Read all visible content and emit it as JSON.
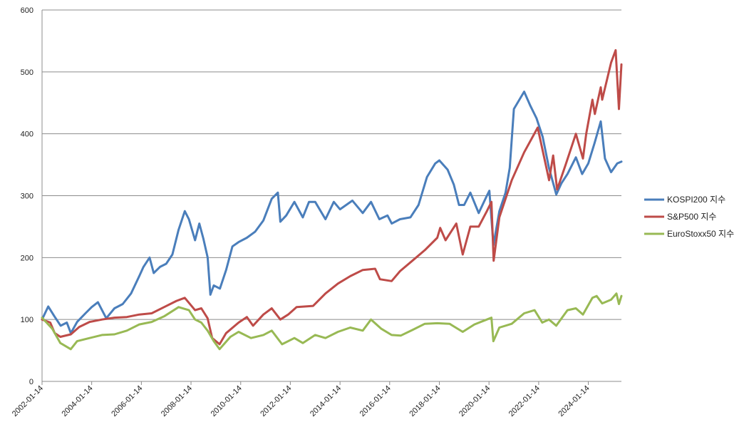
{
  "chart_data": {
    "type": "line",
    "title": "",
    "xlabel": "",
    "ylabel": "",
    "ylim": [
      0,
      600
    ],
    "xlim": [
      "2002-01-14",
      "2025-05-15"
    ],
    "y_ticks": [
      0,
      100,
      200,
      300,
      400,
      500,
      600
    ],
    "x_tick_labels": [
      "2002-01-14",
      "2004-01-14",
      "2006-01-14",
      "2008-01-14",
      "2010-01-14",
      "2012-01-14",
      "2014-01-14",
      "2016-01-14",
      "2018-01-14",
      "2020-01-14",
      "2022-01-14",
      "2024-01-14"
    ],
    "grid": "horizontal",
    "legend": "right",
    "series": [
      {
        "name": "KOSPI200 지수",
        "color": "#4a7ebb",
        "points": [
          [
            "2002-01-14",
            100
          ],
          [
            "2002-04-15",
            121
          ],
          [
            "2002-07-15",
            105
          ],
          [
            "2002-10-15",
            90
          ],
          [
            "2003-01-14",
            95
          ],
          [
            "2003-03-14",
            78
          ],
          [
            "2003-06-14",
            96
          ],
          [
            "2003-10-14",
            110
          ],
          [
            "2004-01-14",
            120
          ],
          [
            "2004-04-15",
            128
          ],
          [
            "2004-08-15",
            102
          ],
          [
            "2004-12-14",
            118
          ],
          [
            "2005-04-15",
            125
          ],
          [
            "2005-08-15",
            142
          ],
          [
            "2005-12-14",
            170
          ],
          [
            "2006-02-14",
            185
          ],
          [
            "2006-05-15",
            200
          ],
          [
            "2006-07-15",
            175
          ],
          [
            "2006-10-15",
            185
          ],
          [
            "2007-01-14",
            190
          ],
          [
            "2007-04-15",
            205
          ],
          [
            "2007-07-15",
            245
          ],
          [
            "2007-10-15",
            275
          ],
          [
            "2007-12-14",
            262
          ],
          [
            "2008-03-14",
            228
          ],
          [
            "2008-05-15",
            255
          ],
          [
            "2008-07-15",
            230
          ],
          [
            "2008-09-15",
            200
          ],
          [
            "2008-10-25",
            140
          ],
          [
            "2008-12-14",
            155
          ],
          [
            "2009-03-14",
            150
          ],
          [
            "2009-06-14",
            180
          ],
          [
            "2009-09-14",
            218
          ],
          [
            "2009-12-14",
            225
          ],
          [
            "2010-04-15",
            232
          ],
          [
            "2010-08-15",
            242
          ],
          [
            "2010-12-14",
            260
          ],
          [
            "2011-04-15",
            295
          ],
          [
            "2011-07-15",
            305
          ],
          [
            "2011-08-20",
            258
          ],
          [
            "2011-11-14",
            268
          ],
          [
            "2012-03-14",
            290
          ],
          [
            "2012-07-15",
            265
          ],
          [
            "2012-10-15",
            290
          ],
          [
            "2013-01-14",
            290
          ],
          [
            "2013-06-14",
            262
          ],
          [
            "2013-10-14",
            290
          ],
          [
            "2014-01-14",
            278
          ],
          [
            "2014-07-15",
            292
          ],
          [
            "2014-12-14",
            272
          ],
          [
            "2015-04-15",
            290
          ],
          [
            "2015-08-15",
            262
          ],
          [
            "2015-12-14",
            268
          ],
          [
            "2016-02-14",
            255
          ],
          [
            "2016-06-14",
            262
          ],
          [
            "2016-11-14",
            265
          ],
          [
            "2017-03-14",
            285
          ],
          [
            "2017-07-15",
            330
          ],
          [
            "2017-11-14",
            352
          ],
          [
            "2018-01-14",
            357
          ],
          [
            "2018-05-15",
            342
          ],
          [
            "2018-08-15",
            318
          ],
          [
            "2018-10-30",
            285
          ],
          [
            "2019-01-14",
            285
          ],
          [
            "2019-04-15",
            305
          ],
          [
            "2019-08-15",
            272
          ],
          [
            "2019-12-14",
            300
          ],
          [
            "2020-01-20",
            308
          ],
          [
            "2020-03-19",
            220
          ],
          [
            "2020-06-14",
            275
          ],
          [
            "2020-09-14",
            305
          ],
          [
            "2020-11-14",
            345
          ],
          [
            "2021-01-14",
            440
          ],
          [
            "2021-06-14",
            468
          ],
          [
            "2021-09-14",
            445
          ],
          [
            "2021-12-14",
            425
          ],
          [
            "2022-03-14",
            395
          ],
          [
            "2022-06-14",
            345
          ],
          [
            "2022-09-30",
            302
          ],
          [
            "2022-12-14",
            320
          ],
          [
            "2023-03-14",
            335
          ],
          [
            "2023-07-15",
            362
          ],
          [
            "2023-10-15",
            335
          ],
          [
            "2024-01-14",
            352
          ],
          [
            "2024-04-15",
            385
          ],
          [
            "2024-07-15",
            420
          ],
          [
            "2024-09-15",
            360
          ],
          [
            "2024-12-14",
            338
          ],
          [
            "2025-03-14",
            352
          ],
          [
            "2025-05-15",
            355
          ]
        ]
      },
      {
        "name": "S&P500 지수",
        "color": "#be4b48",
        "points": [
          [
            "2002-01-14",
            100
          ],
          [
            "2002-05-15",
            95
          ],
          [
            "2002-07-20",
            78
          ],
          [
            "2002-10-10",
            72
          ],
          [
            "2003-03-14",
            76
          ],
          [
            "2003-07-15",
            88
          ],
          [
            "2003-12-14",
            96
          ],
          [
            "2004-06-14",
            100
          ],
          [
            "2004-12-14",
            103
          ],
          [
            "2005-06-14",
            104
          ],
          [
            "2005-12-14",
            108
          ],
          [
            "2006-06-14",
            110
          ],
          [
            "2006-12-14",
            120
          ],
          [
            "2007-06-14",
            130
          ],
          [
            "2007-10-15",
            135
          ],
          [
            "2008-03-14",
            115
          ],
          [
            "2008-06-14",
            118
          ],
          [
            "2008-09-14",
            102
          ],
          [
            "2008-11-20",
            70
          ],
          [
            "2009-03-09",
            60
          ],
          [
            "2009-06-14",
            78
          ],
          [
            "2009-12-14",
            95
          ],
          [
            "2010-04-15",
            104
          ],
          [
            "2010-07-15",
            90
          ],
          [
            "2010-12-14",
            108
          ],
          [
            "2011-04-15",
            118
          ],
          [
            "2011-08-20",
            100
          ],
          [
            "2011-12-14",
            108
          ],
          [
            "2012-04-15",
            120
          ],
          [
            "2012-12-14",
            122
          ],
          [
            "2013-06-14",
            142
          ],
          [
            "2013-12-14",
            158
          ],
          [
            "2014-06-14",
            170
          ],
          [
            "2014-12-14",
            180
          ],
          [
            "2015-06-14",
            182
          ],
          [
            "2015-08-25",
            165
          ],
          [
            "2016-02-11",
            162
          ],
          [
            "2016-06-14",
            178
          ],
          [
            "2016-12-14",
            195
          ],
          [
            "2017-06-14",
            212
          ],
          [
            "2017-12-14",
            232
          ],
          [
            "2018-01-26",
            248
          ],
          [
            "2018-04-15",
            228
          ],
          [
            "2018-09-20",
            255
          ],
          [
            "2018-12-24",
            205
          ],
          [
            "2019-04-15",
            250
          ],
          [
            "2019-08-15",
            250
          ],
          [
            "2019-12-14",
            275
          ],
          [
            "2020-02-19",
            290
          ],
          [
            "2020-03-23",
            195
          ],
          [
            "2020-06-14",
            265
          ],
          [
            "2020-12-14",
            325
          ],
          [
            "2021-06-14",
            370
          ],
          [
            "2021-12-30",
            410
          ],
          [
            "2022-06-16",
            325
          ],
          [
            "2022-08-15",
            365
          ],
          [
            "2022-10-12",
            310
          ],
          [
            "2023-02-14",
            350
          ],
          [
            "2023-07-15",
            400
          ],
          [
            "2023-10-27",
            360
          ],
          [
            "2023-12-14",
            400
          ],
          [
            "2024-03-14",
            455
          ],
          [
            "2024-04-19",
            432
          ],
          [
            "2024-07-15",
            475
          ],
          [
            "2024-08-05",
            455
          ],
          [
            "2024-12-14",
            515
          ],
          [
            "2025-02-19",
            535
          ],
          [
            "2025-04-08",
            440
          ],
          [
            "2025-05-15",
            512
          ]
        ]
      },
      {
        "name": "EuroStoxx50 지수",
        "color": "#98b954",
        "points": [
          [
            "2002-01-14",
            103
          ],
          [
            "2002-06-14",
            85
          ],
          [
            "2002-10-10",
            62
          ],
          [
            "2003-03-12",
            52
          ],
          [
            "2003-06-14",
            65
          ],
          [
            "2003-12-14",
            70
          ],
          [
            "2004-06-14",
            75
          ],
          [
            "2004-12-14",
            76
          ],
          [
            "2005-06-14",
            82
          ],
          [
            "2005-12-14",
            92
          ],
          [
            "2006-06-14",
            96
          ],
          [
            "2006-12-14",
            105
          ],
          [
            "2007-07-15",
            120
          ],
          [
            "2007-12-14",
            115
          ],
          [
            "2008-03-14",
            100
          ],
          [
            "2008-06-14",
            95
          ],
          [
            "2008-09-14",
            82
          ],
          [
            "2008-12-14",
            65
          ],
          [
            "2009-03-09",
            52
          ],
          [
            "2009-08-15",
            72
          ],
          [
            "2009-12-14",
            80
          ],
          [
            "2010-06-14",
            70
          ],
          [
            "2010-12-14",
            75
          ],
          [
            "2011-04-15",
            82
          ],
          [
            "2011-09-14",
            60
          ],
          [
            "2012-03-14",
            70
          ],
          [
            "2012-07-15",
            62
          ],
          [
            "2013-01-14",
            75
          ],
          [
            "2013-06-14",
            70
          ],
          [
            "2013-12-14",
            80
          ],
          [
            "2014-06-14",
            87
          ],
          [
            "2014-12-14",
            82
          ],
          [
            "2015-04-15",
            100
          ],
          [
            "2015-09-14",
            85
          ],
          [
            "2016-02-11",
            75
          ],
          [
            "2016-06-27",
            74
          ],
          [
            "2016-12-14",
            83
          ],
          [
            "2017-06-14",
            93
          ],
          [
            "2017-12-14",
            94
          ],
          [
            "2018-06-14",
            93
          ],
          [
            "2018-12-24",
            80
          ],
          [
            "2019-06-14",
            92
          ],
          [
            "2019-12-14",
            100
          ],
          [
            "2020-02-19",
            103
          ],
          [
            "2020-03-18",
            65
          ],
          [
            "2020-06-14",
            87
          ],
          [
            "2020-12-14",
            93
          ],
          [
            "2021-06-14",
            110
          ],
          [
            "2021-11-14",
            115
          ],
          [
            "2022-03-07",
            95
          ],
          [
            "2022-06-14",
            100
          ],
          [
            "2022-09-29",
            90
          ],
          [
            "2023-03-14",
            115
          ],
          [
            "2023-07-15",
            118
          ],
          [
            "2023-10-27",
            108
          ],
          [
            "2024-03-14",
            135
          ],
          [
            "2024-05-15",
            138
          ],
          [
            "2024-08-05",
            126
          ],
          [
            "2024-12-14",
            132
          ],
          [
            "2025-03-03",
            142
          ],
          [
            "2025-04-08",
            125
          ],
          [
            "2025-05-15",
            138
          ]
        ]
      }
    ]
  }
}
